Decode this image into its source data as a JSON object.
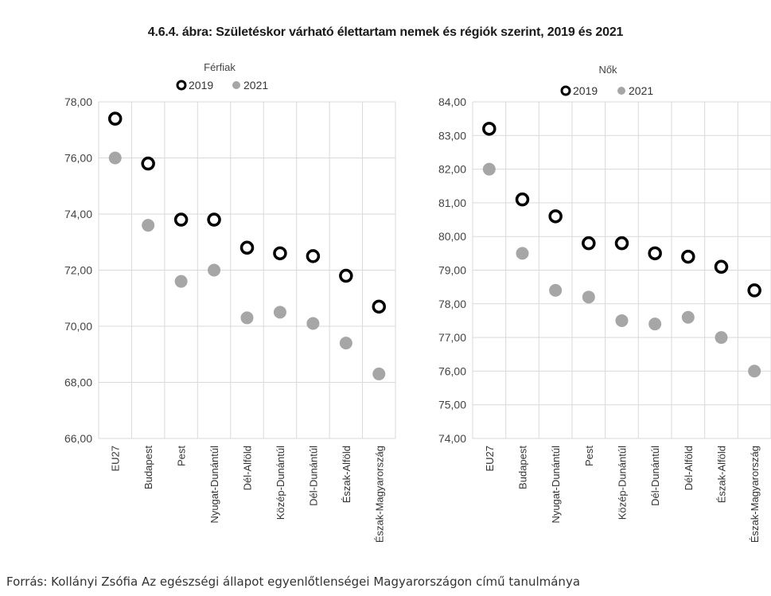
{
  "title": "4.6.4. ábra: Születéskor várható élettartam nemek és régiók szerint, 2019 és 2021",
  "source": "Forrás: Kollányi Zsófia Az egészségi állapot egyenlőtlenségei Magyarországon című tanulmánya",
  "colors": {
    "series_2019": "#000000",
    "series_2021": "#a6a6a6",
    "grid": "#d9d9d9"
  },
  "chart_data": [
    {
      "type": "scatter",
      "title": "Férfiak",
      "categories": [
        "EU27",
        "Budapest",
        "Pest",
        "Nyugat-Dunántúl",
        "Dél-Alföld",
        "Közép-Dunántúl",
        "Dél-Dunántúl",
        "Észak-Alföld",
        "Észak-Magyarország"
      ],
      "series": [
        {
          "name": "2019",
          "values": [
            77.4,
            75.8,
            73.8,
            73.8,
            72.8,
            72.6,
            72.5,
            71.8,
            70.7
          ]
        },
        {
          "name": "2021",
          "values": [
            76.0,
            73.6,
            71.6,
            72.0,
            70.3,
            70.5,
            70.1,
            69.4,
            68.3
          ]
        }
      ],
      "ylim": [
        66,
        78
      ],
      "yticks": [
        "66,00",
        "68,00",
        "70,00",
        "72,00",
        "74,00",
        "76,00",
        "78,00"
      ],
      "ytick_values": [
        66,
        68,
        70,
        72,
        74,
        76,
        78
      ],
      "legend": "top-center",
      "grid": true
    },
    {
      "type": "scatter",
      "title": "Nők",
      "categories": [
        "EU27",
        "Budapest",
        "Nyugat-Dunántúl",
        "Pest",
        "Közép-Dunántúl",
        "Dél-Dunántúl",
        "Dél-Alföld",
        "Észak-Alföld",
        "Észak-Magyarország"
      ],
      "series": [
        {
          "name": "2019",
          "values": [
            83.2,
            81.1,
            80.6,
            79.8,
            79.8,
            79.5,
            79.4,
            79.1,
            78.4
          ]
        },
        {
          "name": "2021",
          "values": [
            82.0,
            79.5,
            78.4,
            78.2,
            77.5,
            77.4,
            77.6,
            77.0,
            76.0
          ]
        }
      ],
      "ylim": [
        74,
        84
      ],
      "yticks": [
        "74,00",
        "75,00",
        "76,00",
        "77,00",
        "78,00",
        "79,00",
        "80,00",
        "81,00",
        "82,00",
        "83,00",
        "84,00"
      ],
      "ytick_values": [
        74,
        75,
        76,
        77,
        78,
        79,
        80,
        81,
        82,
        83,
        84
      ],
      "legend": "top-center",
      "grid": true
    }
  ]
}
